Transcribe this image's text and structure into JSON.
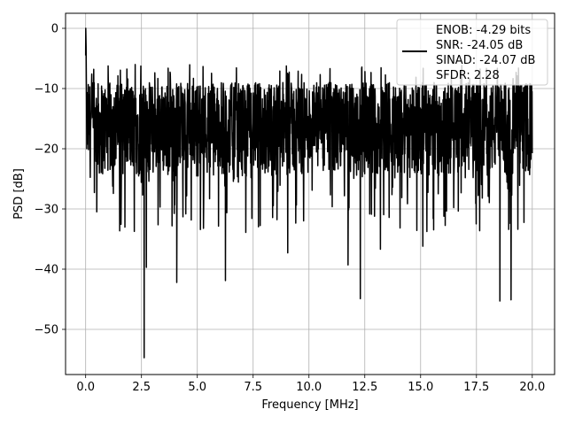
{
  "chart_data": {
    "type": "line",
    "title": "",
    "xlabel": "Frequency [MHz]",
    "ylabel": "PSD [dB]",
    "xlim": [
      -0.9,
      21.0
    ],
    "ylim": [
      -57.5,
      2.5
    ],
    "xticks": [
      0.0,
      2.5,
      5.0,
      7.5,
      10.0,
      12.5,
      15.0,
      17.5,
      20.0
    ],
    "xtick_labels": [
      "0.0",
      "2.5",
      "5.0",
      "7.5",
      "10.0",
      "12.5",
      "15.0",
      "17.5",
      "20.0"
    ],
    "yticks": [
      0,
      -10,
      -20,
      -30,
      -40,
      -50
    ],
    "ytick_labels": [
      "0",
      "−10",
      "−20",
      "−30",
      "−40",
      "−50"
    ],
    "grid": true,
    "legend_position": "top-right",
    "legend": [
      "ENOB: -4.29 bits",
      "SNR: -24.05 dB",
      "SINAD: -24.07 dB",
      "SFDR: 2.28"
    ],
    "series": [
      {
        "color": "#000000",
        "x_range": [
          0,
          20
        ],
        "points": 2048,
        "band_upper": -9,
        "band_lower": -25,
        "peaks": [
          [
            0.0,
            0.0
          ]
        ],
        "dips": [
          [
            2.62,
            -54.7
          ],
          [
            2.72,
            -39.7
          ],
          [
            4.08,
            -42.2
          ],
          [
            6.26,
            -41.9
          ],
          [
            11.75,
            -39.3
          ],
          [
            12.3,
            -44.9
          ],
          [
            18.55,
            -45.3
          ],
          [
            19.05,
            -45.1
          ],
          [
            13.2,
            -36.7
          ],
          [
            15.1,
            -36.2
          ],
          [
            9.05,
            -37.3
          ]
        ]
      }
    ]
  }
}
